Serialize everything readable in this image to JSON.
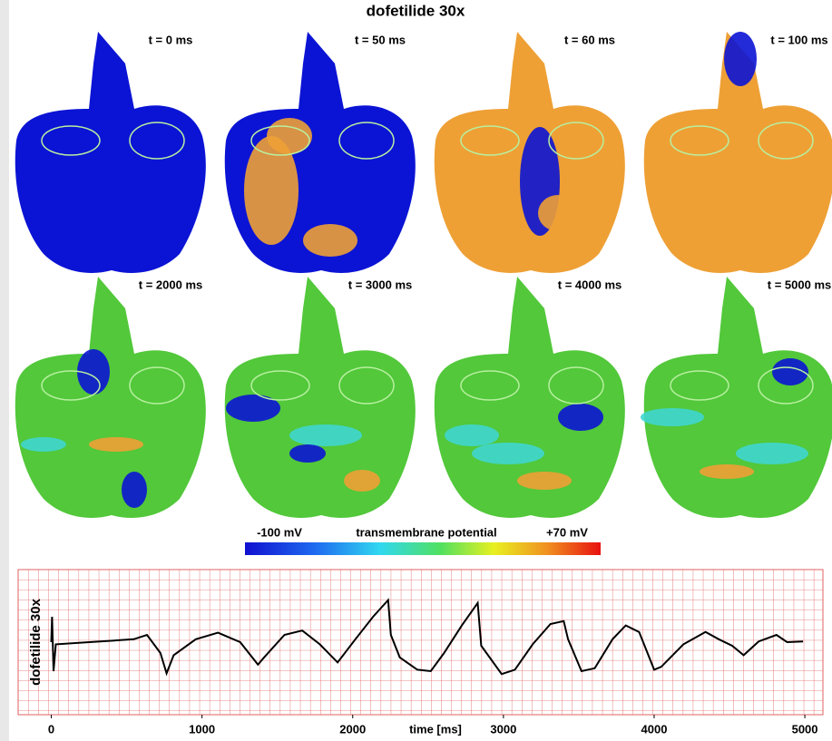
{
  "title": "dofetilide 30x",
  "panels": [
    {
      "label": "t = 0 ms"
    },
    {
      "label": "t = 50 ms"
    },
    {
      "label": "t = 60 ms"
    },
    {
      "label": "t = 100 ms"
    },
    {
      "label": "t = 2000 ms"
    },
    {
      "label": "t = 3000 ms"
    },
    {
      "label": "t = 4000 ms"
    },
    {
      "label": "t = 5000 ms"
    }
  ],
  "colorbar": {
    "min_label": "-100 mV",
    "title": "transmembrane potential",
    "max_label": "+70 mV"
  },
  "chart_data": {
    "type": "line",
    "x_label": "time [ms]",
    "y_label": "dofetilide 30x",
    "color": "#000000",
    "x": [
      0,
      5,
      15,
      30,
      253,
      547,
      635,
      724,
      765,
      812,
      959,
      1106,
      1253,
      1371,
      1412,
      1547,
      1665,
      1782,
      1900,
      2018,
      2135,
      2235,
      2253,
      2312,
      2429,
      2518,
      2606,
      2724,
      2829,
      2853,
      2988,
      3076,
      3194,
      3312,
      3400,
      3429,
      3518,
      3606,
      3724,
      3812,
      3900,
      4000,
      4047,
      4194,
      4341,
      4429,
      4518,
      4594,
      4694,
      4812,
      4882,
      4988
    ],
    "values": [
      0,
      0.35,
      -0.4,
      -0.03,
      0,
      0.04,
      0.1,
      -0.15,
      -0.43,
      -0.18,
      0.04,
      0.13,
      0,
      -0.31,
      -0.21,
      0.1,
      0.16,
      -0.03,
      -0.28,
      0.04,
      0.35,
      0.58,
      0.1,
      -0.21,
      -0.38,
      -0.4,
      -0.15,
      0.23,
      0.54,
      -0.05,
      -0.44,
      -0.38,
      -0.03,
      0.25,
      0.29,
      0.04,
      -0.4,
      -0.36,
      0.04,
      0.23,
      0.14,
      -0.38,
      -0.34,
      -0.03,
      0.14,
      0.04,
      -0.05,
      -0.18,
      0.01,
      0.1,
      0,
      0.01
    ],
    "xlim": [
      -220,
      5120
    ],
    "ylim": [
      -1,
      1
    ],
    "xticks": [
      0,
      1000,
      2000,
      3000,
      4000,
      5000
    ]
  }
}
